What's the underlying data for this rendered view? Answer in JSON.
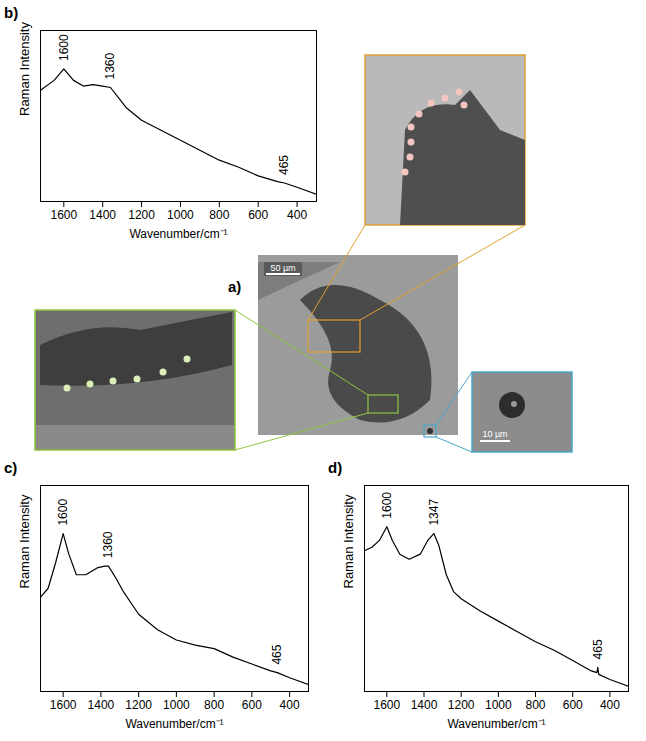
{
  "chart_data": [
    {
      "label": "b)",
      "type": "line",
      "x_label": "Wavenumber/cm⁻¹",
      "y_label": "Raman Intensity",
      "color": "#000000",
      "xlim": [
        1720,
        300
      ],
      "xticks": [
        1600,
        1400,
        1200,
        1000,
        800,
        600,
        400
      ],
      "ylim": [
        0,
        120
      ],
      "yticks": [],
      "tick_labels": "x",
      "x": [
        1720,
        1650,
        1600,
        1550,
        1500,
        1450,
        1400,
        1360,
        1320,
        1280,
        1200,
        1100,
        1000,
        900,
        800,
        700,
        600,
        500,
        465,
        400,
        300
      ],
      "values": [
        78,
        85,
        93,
        85,
        81,
        82,
        81,
        80,
        73,
        66,
        57,
        50,
        43,
        36,
        29,
        24,
        18,
        14,
        13,
        10,
        5
      ],
      "annotations": [
        {
          "x": 1600,
          "text": "1600"
        },
        {
          "x": 1360,
          "text": "1360"
        },
        {
          "x": 465,
          "text": "465"
        }
      ]
    },
    {
      "label": "c)",
      "type": "line",
      "x_label": "Wavenumber/cm⁻¹",
      "y_label": "Raman Intensity",
      "color": "#000000",
      "xlim": [
        1720,
        300
      ],
      "xticks": [
        1600,
        1400,
        1200,
        1000,
        800,
        600,
        400
      ],
      "ylim": [
        0,
        120
      ],
      "yticks": [],
      "tick_labels": "x",
      "x": [
        1720,
        1680,
        1640,
        1600,
        1570,
        1530,
        1480,
        1420,
        1380,
        1360,
        1320,
        1280,
        1200,
        1100,
        1000,
        900,
        800,
        700,
        600,
        500,
        465,
        400,
        300
      ],
      "values": [
        55,
        60,
        75,
        92,
        80,
        68,
        68,
        72,
        73,
        73,
        66,
        58,
        45,
        36,
        30,
        27,
        25,
        20,
        16,
        12,
        11,
        8,
        4
      ],
      "annotations": [
        {
          "x": 1600,
          "text": "1600"
        },
        {
          "x": 1360,
          "text": "1360"
        },
        {
          "x": 465,
          "text": "465"
        }
      ]
    },
    {
      "label": "d)",
      "type": "line",
      "x_label": "Wavenumber/cm⁻¹",
      "y_label": "Raman Intensity",
      "color": "#000000",
      "xlim": [
        1720,
        300
      ],
      "xticks": [
        1600,
        1400,
        1200,
        1000,
        800,
        600,
        400
      ],
      "ylim": [
        0,
        120
      ],
      "yticks": [],
      "tick_labels": "x",
      "x": [
        1720,
        1680,
        1640,
        1600,
        1570,
        1530,
        1480,
        1420,
        1380,
        1347,
        1320,
        1280,
        1240,
        1200,
        1100,
        1000,
        900,
        800,
        700,
        600,
        500,
        470,
        465,
        460,
        400,
        300
      ],
      "values": [
        82,
        84,
        88,
        96,
        88,
        80,
        77,
        80,
        88,
        92,
        85,
        68,
        58,
        54,
        47,
        41,
        35,
        29,
        24,
        18,
        12,
        11,
        14,
        10,
        7,
        3
      ],
      "annotations": [
        {
          "x": 1600,
          "text": "1600"
        },
        {
          "x": 1347,
          "text": "1347"
        },
        {
          "x": 465,
          "text": "465"
        }
      ]
    }
  ],
  "panel_a": {
    "label": "a)",
    "scale_bars": [
      "50 µm",
      "10 µm"
    ]
  }
}
